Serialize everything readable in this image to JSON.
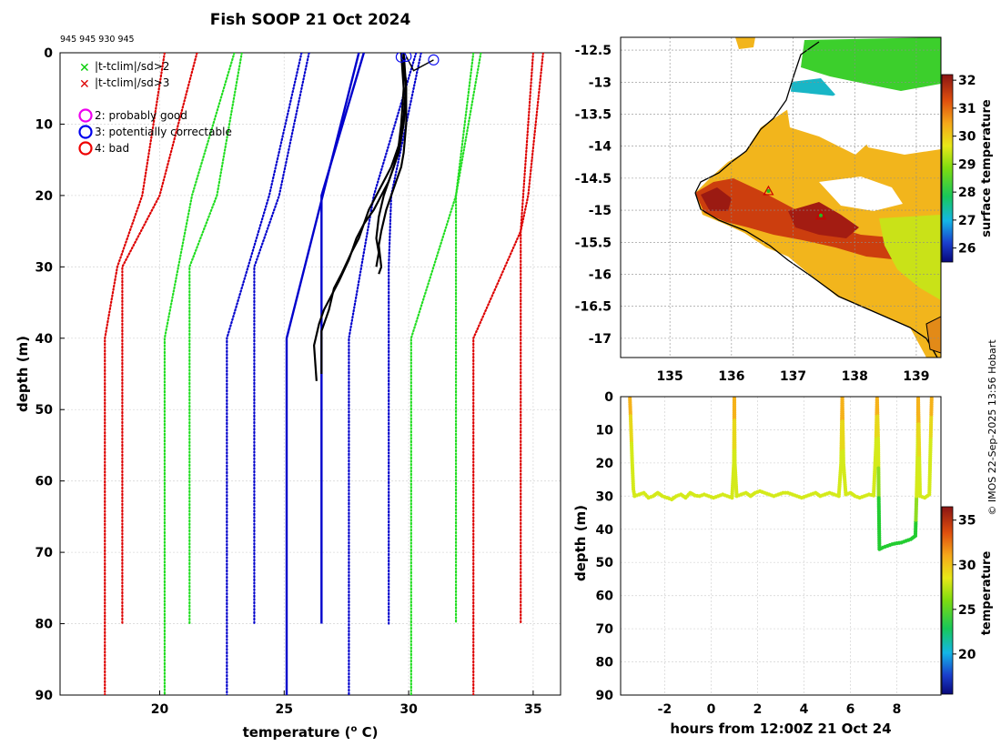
{
  "credit": "© IMOS 22-Sep-2025 13:56 Hobart",
  "chart_data": [
    {
      "id": "profile",
      "type": "line",
      "title": "Fish SOOP 21 Oct 2024",
      "subtitle": "945 945 930 945",
      "xlabel": "temperature (",
      "xlabel_sup": "o",
      "xlabel_unit": " C)",
      "ylabel": "depth (m)",
      "xlim": [
        16,
        36.1
      ],
      "ylim": [
        90,
        0
      ],
      "xticks": [
        20,
        25,
        30,
        35
      ],
      "yticks": [
        0,
        10,
        20,
        30,
        40,
        50,
        60,
        70,
        80,
        90
      ],
      "grid": true,
      "legend": [
        {
          "label": "|t-tclim|/sd>2",
          "marker": "x",
          "color": "#00dd00"
        },
        {
          "label": "|t-tclim|/sd>3",
          "marker": "x",
          "color": "#dd0000"
        },
        {
          "label": "2: probably good",
          "marker": "o",
          "color": "#ee00ee"
        },
        {
          "label": "3: potentially correctable",
          "marker": "o",
          "color": "#0000ee"
        },
        {
          "label": "4: bad",
          "marker": "o",
          "color": "#ee0000"
        }
      ],
      "climatology": [
        {
          "name": "climatology mean",
          "color": "#0000cc",
          "style": "solid",
          "lines": [
            {
              "x": [
                28.0,
                25.1,
                25.1
              ],
              "y": [
                0,
                40,
                90
              ]
            },
            {
              "x": [
                28.2,
                26.5,
                26.5,
                26.5
              ],
              "y": [
                0,
                20,
                30,
                80
              ]
            }
          ]
        },
        {
          "name": "mean ± 1 sd",
          "color": "#0000cc",
          "style": "dotted",
          "lines": [
            {
              "x": [
                25.7,
                24.4,
                22.7,
                22.7
              ],
              "y": [
                0,
                20,
                40,
                90
              ]
            },
            {
              "x": [
                26.0,
                24.8,
                23.8,
                23.8
              ],
              "y": [
                0,
                20,
                30,
                80
              ]
            },
            {
              "x": [
                30.3,
                28.6,
                27.6,
                27.6
              ],
              "y": [
                0,
                20,
                40,
                90
              ]
            },
            {
              "x": [
                30.5,
                29.3,
                29.2,
                29.2
              ],
              "y": [
                0,
                20,
                30,
                80
              ]
            }
          ]
        },
        {
          "name": "mean ± 2 sd",
          "color": "#22dd22",
          "style": "dotted",
          "lines": [
            {
              "x": [
                23.0,
                21.3,
                20.2,
                20.2
              ],
              "y": [
                0,
                20,
                40,
                90
              ]
            },
            {
              "x": [
                23.3,
                22.3,
                21.2,
                21.2
              ],
              "y": [
                0,
                20,
                30,
                80
              ]
            },
            {
              "x": [
                32.6,
                31.9,
                30.1,
                30.1
              ],
              "y": [
                0,
                20,
                40,
                90
              ]
            },
            {
              "x": [
                32.9,
                31.9,
                31.9,
                31.9
              ],
              "y": [
                0,
                20,
                30,
                80
              ]
            }
          ]
        },
        {
          "name": "mean ± 3 sd",
          "color": "#dd0000",
          "style": "dotted",
          "lines": [
            {
              "x": [
                20.2,
                19.3,
                18.3,
                17.8,
                17.8
              ],
              "y": [
                0,
                20,
                30,
                40,
                90
              ]
            },
            {
              "x": [
                21.5,
                20.0,
                18.5,
                18.5
              ],
              "y": [
                0,
                20,
                30,
                80
              ]
            },
            {
              "x": [
                35.0,
                34.6,
                34.5,
                32.6,
                32.6
              ],
              "y": [
                0,
                20,
                25,
                40,
                90
              ]
            },
            {
              "x": [
                35.4,
                34.8,
                34.5,
                34.5
              ],
              "y": [
                0,
                20,
                25,
                80
              ]
            }
          ]
        }
      ],
      "profiles": [
        {
          "name": "profile 1",
          "x": [
            29.7,
            29.8,
            29.7,
            29.6,
            29.4,
            29.2,
            28.9,
            28.6,
            28.2,
            27.9,
            27.6,
            27.2,
            26.9,
            26.6,
            26.4,
            26.2,
            26.3
          ],
          "y": [
            0,
            5,
            10,
            13,
            16,
            18,
            20,
            22,
            24,
            26,
            29,
            32,
            34,
            36,
            38,
            41,
            46
          ]
        },
        {
          "name": "profile 2",
          "x": [
            29.7,
            29.9,
            29.8,
            29.6,
            29.3,
            29.0,
            28.7,
            28.4,
            28.2,
            28.0,
            27.7,
            27.3,
            27.0,
            26.8,
            26.5,
            26.5
          ],
          "y": [
            0,
            4,
            9,
            13,
            16,
            18,
            20,
            22,
            24,
            26,
            28,
            31,
            33,
            36,
            39,
            45
          ]
        },
        {
          "name": "profile 3",
          "x": [
            29.8,
            29.9,
            29.9,
            29.8,
            29.7,
            29.5,
            29.3,
            29.1,
            28.9,
            28.8,
            28.9,
            28.8
          ],
          "y": [
            0,
            5,
            10,
            14,
            16,
            18,
            20,
            22,
            25,
            27,
            30,
            31
          ]
        },
        {
          "name": "profile 4",
          "x": [
            29.7,
            29.9,
            29.8,
            29.6,
            29.4,
            29.2,
            29.0,
            28.8,
            28.7,
            28.8,
            28.7
          ],
          "y": [
            0,
            5,
            10,
            14,
            16,
            18,
            20,
            23,
            26,
            28,
            30
          ]
        }
      ],
      "flag_markers": [
        {
          "x": 29.7,
          "y": 0.6,
          "flag": 3
        },
        {
          "x": 29.9,
          "y": 0.5,
          "flag": 3
        },
        {
          "x": 31.0,
          "y": 1.0,
          "flag": 3
        }
      ]
    },
    {
      "id": "sst_map",
      "type": "heatmap",
      "xlim": [
        134.2,
        139.4
      ],
      "ylim": [
        -17.3,
        -12.3
      ],
      "xticks": [
        135,
        136,
        137,
        138,
        139
      ],
      "yticks": [
        -12.5,
        -13,
        -13.5,
        -14,
        -14.5,
        -15,
        -15.5,
        -16,
        -16.5,
        -17
      ],
      "xtick_labels": [
        "135",
        "136",
        "137",
        "138",
        "139"
      ],
      "ytick_labels": [
        "-12.5",
        "-13",
        "-13.5",
        "-14",
        "-14.5",
        "-15",
        "-15.5",
        "-16",
        "-16.5",
        "-17"
      ],
      "grid": true,
      "colorbar": {
        "label": "surface temperature",
        "range": [
          25.5,
          32.2
        ],
        "ticks": [
          26,
          27,
          28,
          29,
          30,
          31,
          32
        ]
      },
      "markers": [
        {
          "lon": 136.6,
          "lat": -14.7,
          "symbol": "triangle",
          "color": "#22bb22"
        },
        {
          "lon": 137.45,
          "lat": -15.08,
          "symbol": "triangle",
          "color": "#22bb22"
        }
      ]
    },
    {
      "id": "depth_time",
      "type": "scatter",
      "xlabel": "hours from 12:00Z 21 Oct 24",
      "ylabel": "depth (m)",
      "xlim": [
        -3.9,
        9.9
      ],
      "ylim": [
        90,
        0
      ],
      "xticks": [
        -2,
        0,
        2,
        4,
        6,
        8
      ],
      "yticks": [
        0,
        10,
        20,
        30,
        40,
        50,
        60,
        70,
        80,
        90
      ],
      "grid": true,
      "colorbar": {
        "label": "temperature",
        "range": [
          15.5,
          36.5
        ],
        "ticks": [
          20,
          25,
          30,
          35
        ]
      },
      "series": [
        {
          "name": "depth trace",
          "t": [
            -3.5,
            -3.45,
            -3.4,
            -3.35,
            -3.3,
            -3.1,
            -2.9,
            -2.7,
            -2.5,
            -2.3,
            -2.1,
            -1.9,
            -1.7,
            -1.5,
            -1.3,
            -1.1,
            -0.9,
            -0.7,
            -0.5,
            -0.3,
            -0.1,
            0.1,
            0.3,
            0.5,
            0.7,
            0.9,
            0.98,
            1.0,
            1.02,
            1.1,
            1.3,
            1.5,
            1.7,
            1.9,
            2.1,
            2.3,
            2.5,
            2.7,
            2.9,
            3.1,
            3.3,
            3.5,
            3.7,
            3.9,
            4.1,
            4.3,
            4.5,
            4.7,
            4.9,
            5.1,
            5.3,
            5.5,
            5.6,
            5.65,
            5.7,
            5.8,
            6.0,
            6.2,
            6.4,
            6.6,
            6.8,
            7.0,
            7.1,
            7.15,
            7.2,
            7.22,
            7.25,
            7.4,
            7.6,
            7.8,
            8.0,
            8.2,
            8.4,
            8.6,
            8.8,
            8.85,
            8.9,
            8.92,
            9.0,
            9.2,
            9.4,
            9.45,
            9.5
          ],
          "d": [
            0.5,
            10,
            20,
            28,
            30,
            29.5,
            29,
            30.5,
            30,
            29,
            30,
            30.5,
            31,
            30,
            29.5,
            30.5,
            29,
            29.8,
            30,
            29.5,
            30,
            30.5,
            30,
            29.5,
            30,
            30.5,
            20,
            0.5,
            20,
            30,
            29.5,
            29,
            30,
            29,
            28.5,
            29,
            29.5,
            30,
            29.5,
            29,
            29,
            29.5,
            30,
            30.5,
            30,
            29.5,
            29,
            30,
            29.5,
            29,
            29.5,
            30,
            20,
            0.3,
            20,
            29.5,
            29,
            30,
            30.5,
            30,
            29.5,
            29.8,
            15,
            0.5,
            15,
            30,
            46,
            45.5,
            45,
            44.5,
            44.2,
            44,
            43.5,
            43,
            42,
            30,
            15,
            0.5,
            30,
            30.5,
            29.5,
            15,
            0.5
          ],
          "temp": [
            30,
            29,
            28.5,
            28.2,
            28,
            28,
            28,
            28,
            28,
            28,
            28,
            28,
            28,
            28,
            28,
            28,
            28,
            28,
            28,
            28,
            28,
            28,
            28,
            28,
            28,
            28,
            28.5,
            30,
            28.5,
            28,
            28,
            28,
            28,
            28,
            28,
            28,
            28,
            28,
            28,
            28,
            28,
            28,
            28,
            28,
            28,
            28,
            28,
            28,
            28,
            28,
            28,
            28,
            28.5,
            30,
            28.5,
            28,
            28,
            28,
            28,
            28,
            28,
            28,
            28.5,
            30,
            28.5,
            26,
            25,
            25,
            25,
            25,
            25,
            25,
            25,
            25,
            25,
            27.5,
            28.5,
            30,
            28,
            28,
            28,
            28.5,
            30
          ]
        }
      ]
    }
  ]
}
